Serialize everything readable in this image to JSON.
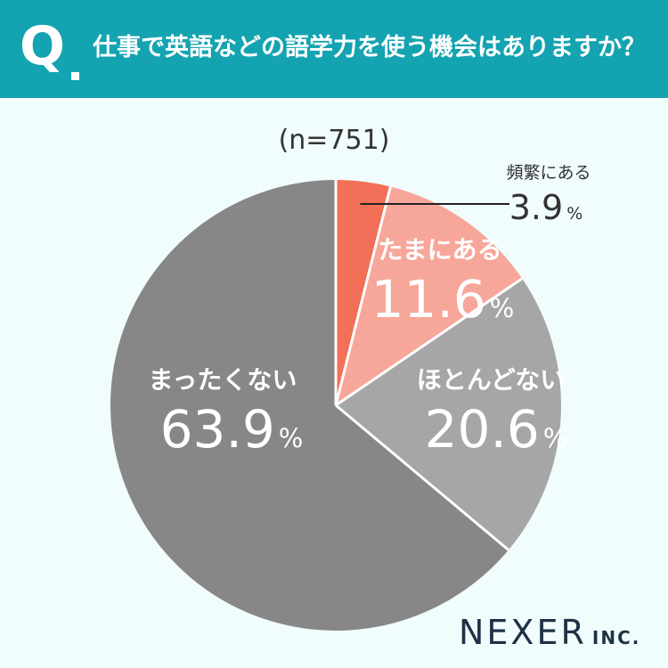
{
  "header": {
    "q_label": "Q",
    "question": "仕事で英語などの語学力を使う機会はありますか？"
  },
  "sample_label": "(n=751)",
  "brand": {
    "name": "NEXER",
    "suffix": "INC."
  },
  "chart_data": {
    "type": "pie",
    "title": "仕事で英語などの語学力を使う機会はありますか？",
    "n": 751,
    "slices": [
      {
        "label": "頻繁にある",
        "value": 3.9,
        "display": "3.9",
        "unit": "%",
        "color": "#f27058"
      },
      {
        "label": "たまにある",
        "value": 11.6,
        "display": "11.6",
        "unit": "%",
        "color": "#f7a69a"
      },
      {
        "label": "ほとんどない",
        "value": 20.6,
        "display": "20.6",
        "unit": "%",
        "color": "#a6a6a6"
      },
      {
        "label": "まったくない",
        "value": 63.9,
        "display": "63.9",
        "unit": "%",
        "color": "#878787"
      }
    ],
    "start_angle_deg": 0,
    "direction": "clockwise",
    "separator_color": "#ffffff"
  }
}
